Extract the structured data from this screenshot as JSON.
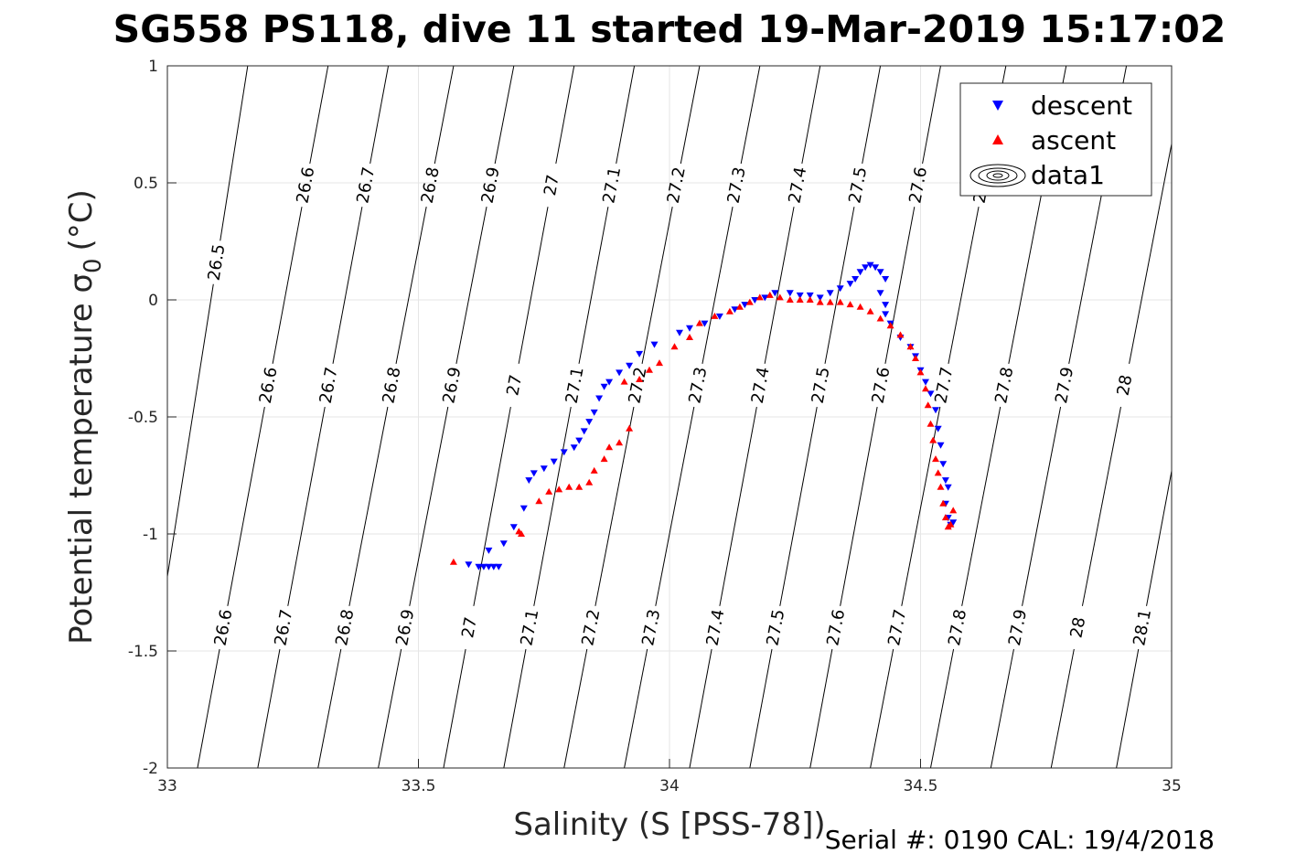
{
  "chart_data": {
    "type": "scatter",
    "title": "SG558 PS118, dive 11 started 19-Mar-2019 15:17:02",
    "xlabel": "Salinity (S [PSS-78])",
    "ylabel_main": "Potential temperature σ",
    "ylabel_sub": "0",
    "ylabel_unit": "(°C)",
    "xlim": [
      33,
      35
    ],
    "ylim": [
      -2,
      1
    ],
    "xticks": [
      "33",
      "33.5",
      "34",
      "34.5",
      "35"
    ],
    "yticks": [
      "-2",
      "-1.5",
      "-1",
      "-0.5",
      "0",
      "0.5",
      "1"
    ],
    "grid": true,
    "legend_position": "top-right",
    "legend": [
      "descent",
      "ascent",
      "data1"
    ],
    "colors": {
      "descent": "#0000ff",
      "ascent": "#ff0000",
      "contour": "#000000",
      "grid": "#e6e6e6"
    },
    "series": [
      {
        "name": "descent",
        "marker": "triangle-down",
        "points": [
          [
            33.6,
            -1.13
          ],
          [
            33.62,
            -1.14
          ],
          [
            33.63,
            -1.14
          ],
          [
            33.64,
            -1.14
          ],
          [
            33.65,
            -1.14
          ],
          [
            33.66,
            -1.14
          ],
          [
            33.64,
            -1.07
          ],
          [
            33.67,
            -1.04
          ],
          [
            33.69,
            -0.97
          ],
          [
            33.71,
            -0.89
          ],
          [
            33.72,
            -0.77
          ],
          [
            33.73,
            -0.74
          ],
          [
            33.75,
            -0.72
          ],
          [
            33.77,
            -0.69
          ],
          [
            33.79,
            -0.65
          ],
          [
            33.81,
            -0.63
          ],
          [
            33.82,
            -0.6
          ],
          [
            33.83,
            -0.56
          ],
          [
            33.84,
            -0.52
          ],
          [
            33.85,
            -0.48
          ],
          [
            33.86,
            -0.42
          ],
          [
            33.87,
            -0.37
          ],
          [
            33.88,
            -0.35
          ],
          [
            33.9,
            -0.31
          ],
          [
            33.92,
            -0.28
          ],
          [
            33.94,
            -0.23
          ],
          [
            33.97,
            -0.19
          ],
          [
            34.02,
            -0.14
          ],
          [
            34.04,
            -0.12
          ],
          [
            34.07,
            -0.1
          ],
          [
            34.1,
            -0.07
          ],
          [
            34.13,
            -0.04
          ],
          [
            34.15,
            -0.02
          ],
          [
            34.17,
            0.0
          ],
          [
            34.19,
            0.01
          ],
          [
            34.21,
            0.03
          ],
          [
            34.24,
            0.03
          ],
          [
            34.26,
            0.02
          ],
          [
            34.28,
            0.02
          ],
          [
            34.3,
            0.01
          ],
          [
            34.32,
            0.03
          ],
          [
            34.34,
            0.05
          ],
          [
            34.36,
            0.07
          ],
          [
            34.37,
            0.09
          ],
          [
            34.38,
            0.12
          ],
          [
            34.39,
            0.14
          ],
          [
            34.4,
            0.15
          ],
          [
            34.41,
            0.14
          ],
          [
            34.42,
            0.12
          ],
          [
            34.43,
            0.09
          ],
          [
            34.42,
            0.03
          ],
          [
            34.43,
            -0.02
          ],
          [
            34.43,
            -0.06
          ],
          [
            34.44,
            -0.1
          ],
          [
            34.46,
            -0.16
          ],
          [
            34.48,
            -0.2
          ],
          [
            34.49,
            -0.24
          ],
          [
            34.5,
            -0.3
          ],
          [
            34.51,
            -0.35
          ],
          [
            34.52,
            -0.4
          ],
          [
            34.53,
            -0.47
          ],
          [
            34.535,
            -0.55
          ],
          [
            34.54,
            -0.62
          ],
          [
            34.545,
            -0.7
          ],
          [
            34.55,
            -0.77
          ],
          [
            34.555,
            -0.8
          ],
          [
            34.55,
            -0.87
          ],
          [
            34.555,
            -0.93
          ],
          [
            34.56,
            -0.96
          ],
          [
            34.565,
            -0.95
          ]
        ]
      },
      {
        "name": "ascent",
        "marker": "triangle-up",
        "points": [
          [
            33.57,
            -1.12
          ],
          [
            33.7,
            -0.99
          ],
          [
            33.705,
            -1.0
          ],
          [
            33.74,
            -0.86
          ],
          [
            33.76,
            -0.82
          ],
          [
            33.78,
            -0.81
          ],
          [
            33.8,
            -0.8
          ],
          [
            33.82,
            -0.8
          ],
          [
            33.84,
            -0.78
          ],
          [
            33.85,
            -0.73
          ],
          [
            33.87,
            -0.68
          ],
          [
            33.88,
            -0.63
          ],
          [
            33.9,
            -0.61
          ],
          [
            33.92,
            -0.55
          ],
          [
            33.91,
            -0.35
          ],
          [
            33.94,
            -0.34
          ],
          [
            33.96,
            -0.3
          ],
          [
            33.98,
            -0.27
          ],
          [
            34.01,
            -0.2
          ],
          [
            34.04,
            -0.16
          ],
          [
            34.06,
            -0.1
          ],
          [
            34.09,
            -0.07
          ],
          [
            34.12,
            -0.05
          ],
          [
            34.14,
            -0.03
          ],
          [
            34.16,
            -0.01
          ],
          [
            34.18,
            0.01
          ],
          [
            34.2,
            0.02
          ],
          [
            34.22,
            0.01
          ],
          [
            34.24,
            0.0
          ],
          [
            34.26,
            0.0
          ],
          [
            34.28,
            0.0
          ],
          [
            34.3,
            -0.01
          ],
          [
            34.32,
            -0.01
          ],
          [
            34.34,
            -0.01
          ],
          [
            34.36,
            -0.02
          ],
          [
            34.38,
            -0.03
          ],
          [
            34.4,
            -0.05
          ],
          [
            34.42,
            -0.08
          ],
          [
            34.44,
            -0.11
          ],
          [
            34.46,
            -0.15
          ],
          [
            34.48,
            -0.2
          ],
          [
            34.49,
            -0.25
          ],
          [
            34.5,
            -0.31
          ],
          [
            34.51,
            -0.38
          ],
          [
            34.515,
            -0.45
          ],
          [
            34.52,
            -0.53
          ],
          [
            34.525,
            -0.6
          ],
          [
            34.53,
            -0.68
          ],
          [
            34.535,
            -0.74
          ],
          [
            34.54,
            -0.8
          ],
          [
            34.545,
            -0.87
          ],
          [
            34.55,
            -0.93
          ],
          [
            34.555,
            -0.97
          ],
          [
            34.56,
            -0.96
          ],
          [
            34.565,
            -0.9
          ]
        ]
      }
    ],
    "contours": [
      {
        "label": "26.5",
        "bottom": 32.94,
        "top": 33.16,
        "label_pos": [
          [
            0.2,
            0.22
          ]
        ]
      },
      {
        "label": "26.6",
        "bottom": 33.06,
        "top": 33.32,
        "label_pos": [
          [
            0.5,
            0.55
          ],
          [
            0.47,
            0.2
          ],
          [
            0.2,
            0.85
          ]
        ]
      },
      {
        "label": "26.7",
        "bottom": 33.18,
        "top": 33.44,
        "label_pos": [
          [
            0.5,
            0.55
          ],
          [
            0.47,
            0.2
          ],
          [
            0.2,
            0.85
          ]
        ]
      },
      {
        "label": "26.8",
        "bottom": 33.3,
        "top": 33.57,
        "label_pos": [
          [
            0.5,
            0.55
          ],
          [
            0.47,
            0.2
          ],
          [
            0.2,
            0.85
          ]
        ]
      },
      {
        "label": "26.9",
        "bottom": 33.42,
        "top": 33.69,
        "label_pos": [
          [
            0.5,
            0.55
          ],
          [
            0.47,
            0.2
          ],
          [
            0.2,
            0.85
          ]
        ]
      },
      {
        "label": "27",
        "bottom": 33.55,
        "top": 33.81,
        "label_pos": [
          [
            0.5,
            0.55
          ],
          [
            0.47,
            0.2
          ],
          [
            0.2,
            0.85
          ]
        ]
      },
      {
        "label": "27.1",
        "bottom": 33.67,
        "top": 33.93,
        "label_pos": [
          [
            0.5,
            0.55
          ],
          [
            0.47,
            0.2
          ],
          [
            0.2,
            0.85
          ]
        ]
      },
      {
        "label": "27.2",
        "bottom": 33.79,
        "top": 34.06,
        "label_pos": [
          [
            0.5,
            0.55
          ],
          [
            0.47,
            0.2
          ],
          [
            0.2,
            0.85
          ]
        ]
      },
      {
        "label": "27.3",
        "bottom": 33.91,
        "top": 34.18,
        "label_pos": [
          [
            0.5,
            0.55
          ],
          [
            0.47,
            0.2
          ],
          [
            0.2,
            0.85
          ]
        ]
      },
      {
        "label": "27.4",
        "bottom": 34.04,
        "top": 34.3,
        "label_pos": [
          [
            0.5,
            0.55
          ],
          [
            0.47,
            0.2
          ],
          [
            0.2,
            0.85
          ]
        ]
      },
      {
        "label": "27.5",
        "bottom": 34.16,
        "top": 34.42,
        "label_pos": [
          [
            0.5,
            0.55
          ],
          [
            0.47,
            0.2
          ],
          [
            0.2,
            0.85
          ]
        ]
      },
      {
        "label": "27.6",
        "bottom": 34.28,
        "top": 34.54,
        "label_pos": [
          [
            0.5,
            0.55
          ],
          [
            0.47,
            0.2
          ],
          [
            0.2,
            0.85
          ]
        ]
      },
      {
        "label": "27.7",
        "bottom": 34.4,
        "top": 34.67,
        "label_pos": [
          [
            0.5,
            0.55
          ],
          [
            0.47,
            0.2
          ],
          [
            0.2,
            0.85
          ]
        ]
      },
      {
        "label": "27.8",
        "bottom": 34.52,
        "top": 34.79,
        "label_pos": [
          [
            0.5,
            0.55
          ],
          [
            0.2,
            0.85
          ]
        ]
      },
      {
        "label": "27.9",
        "bottom": 34.64,
        "top": 34.91,
        "label_pos": [
          [
            0.5,
            0.55
          ],
          [
            0.2,
            0.85
          ]
        ]
      },
      {
        "label": "28",
        "bottom": 34.76,
        "top": 35.03,
        "label_pos": [
          [
            0.5,
            0.55
          ],
          [
            0.2,
            0.85
          ]
        ]
      },
      {
        "label": "28.1",
        "bottom": 34.89,
        "top": 35.15,
        "label_pos": [
          [
            0.5,
            0.55
          ],
          [
            0.2,
            0.85
          ]
        ]
      }
    ]
  },
  "footer": "Serial #: 0190  CAL: 19/4/2018"
}
